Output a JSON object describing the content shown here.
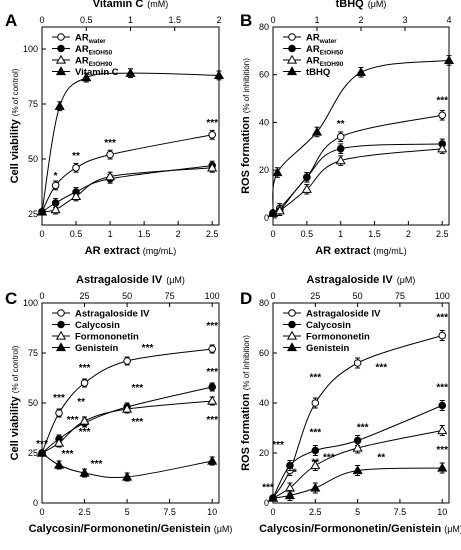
{
  "charts": [
    {
      "panel": "A",
      "top_title": "Vitamin C",
      "top_unit": "(mM)",
      "top_ticks": [
        "0",
        "0.5",
        "1",
        "1.5",
        "2"
      ],
      "top_range": [
        0,
        2
      ],
      "ylabel": "Cell viability",
      "ylabel_unit": "(% of control)",
      "xlabel": "AR extract",
      "xlabel_unit": "(mg/mL)",
      "x_ticks": [
        "0",
        "0.5",
        "1",
        "1.5",
        "2",
        "2.5"
      ],
      "x_range": [
        0,
        2.6
      ],
      "y_ticks": [
        "25",
        "50",
        "75",
        "100"
      ],
      "y_range": [
        20,
        110
      ],
      "legend": [
        {
          "name": "AR",
          "sub": "water",
          "marker": "circle-open"
        },
        {
          "name": "AR",
          "sub": "EtOH50",
          "marker": "circle-filled"
        },
        {
          "name": "AR",
          "sub": "EtOH90",
          "marker": "triangle-open"
        },
        {
          "name": "Vitamin C",
          "sub": "",
          "marker": "triangle-filled"
        }
      ]
    },
    {
      "panel": "B",
      "top_title": "tBHQ",
      "top_unit": "(μM)",
      "top_ticks": [
        "0",
        "1",
        "2",
        "3",
        "4"
      ],
      "top_range": [
        0,
        4
      ],
      "ylabel": "ROS formation",
      "ylabel_unit": "(% of inhibition)",
      "xlabel": "AR extract",
      "xlabel_unit": "(mg/mL)",
      "x_ticks": [
        "0",
        "0.5",
        "1",
        "1.5",
        "2",
        "2.5"
      ],
      "x_range": [
        0,
        2.6
      ],
      "y_ticks": [
        "0",
        "20",
        "40",
        "60",
        "80"
      ],
      "y_range": [
        -3,
        80
      ],
      "legend": [
        {
          "name": "AR",
          "sub": "water",
          "marker": "circle-open"
        },
        {
          "name": "AR",
          "sub": "EtOH50",
          "marker": "circle-filled"
        },
        {
          "name": "AR",
          "sub": "EtOH90",
          "marker": "triangle-open"
        },
        {
          "name": "tBHQ",
          "sub": "",
          "marker": "triangle-filled"
        }
      ]
    },
    {
      "panel": "C",
      "top_title": "Astragaloside IV",
      "top_unit": "(μM)",
      "top_ticks": [
        "0",
        "25",
        "50",
        "75",
        "100"
      ],
      "top_range": [
        0,
        104
      ],
      "ylabel": "Cell viability",
      "ylabel_unit": "(% of control)",
      "xlabel": "Calycosin/Formononetin/Genistein",
      "xlabel_unit": "(μM)",
      "x_ticks": [
        "0",
        "2.5",
        "5",
        "7.5",
        "10"
      ],
      "x_range": [
        0,
        10.4
      ],
      "y_ticks": [
        "0",
        "25",
        "50",
        "75",
        "100"
      ],
      "y_range": [
        0,
        100
      ],
      "legend": [
        {
          "name": "Astragaloside IV",
          "sub": "",
          "marker": "circle-open"
        },
        {
          "name": "Calycosin",
          "sub": "",
          "marker": "circle-filled"
        },
        {
          "name": "Formononetin",
          "sub": "",
          "marker": "triangle-open"
        },
        {
          "name": "Genistein",
          "sub": "",
          "marker": "triangle-filled"
        }
      ]
    },
    {
      "panel": "D",
      "top_title": "Astragaloside IV",
      "top_unit": "(μM)",
      "top_ticks": [
        "0",
        "25",
        "50",
        "75",
        "100"
      ],
      "top_range": [
        0,
        104
      ],
      "ylabel": "ROS formation",
      "ylabel_unit": "(% of inhibition)",
      "xlabel": "Calycosin/Formononetin/Genistein",
      "xlabel_unit": "(μM)",
      "x_ticks": [
        "0",
        "2.5",
        "5",
        "7.5",
        "10"
      ],
      "x_range": [
        0,
        10.4
      ],
      "y_ticks": [
        "0",
        "20",
        "40",
        "60",
        "80"
      ],
      "y_range": [
        0,
        80
      ],
      "legend": [
        {
          "name": "Astragaloside IV",
          "sub": "",
          "marker": "circle-open"
        },
        {
          "name": "Calycosin",
          "sub": "",
          "marker": "circle-filled"
        },
        {
          "name": "Formononetin",
          "sub": "",
          "marker": "triangle-open"
        },
        {
          "name": "Genistein",
          "sub": "",
          "marker": "triangle-filled"
        }
      ]
    }
  ],
  "chart_data": [
    {
      "type": "scatter",
      "panel": "A",
      "series": [
        {
          "marker": "circle-open",
          "axis": "bottom",
          "x": [
            0,
            0.2,
            0.5,
            1,
            2.5
          ],
          "y": [
            26,
            38,
            46,
            52,
            61
          ],
          "err": [
            1,
            2,
            2,
            2,
            2
          ]
        },
        {
          "marker": "circle-filled",
          "axis": "bottom",
          "x": [
            0,
            0.2,
            0.5,
            1,
            2.5
          ],
          "y": [
            26,
            30,
            35,
            41,
            47
          ],
          "err": [
            1,
            2,
            2,
            2,
            2
          ]
        },
        {
          "marker": "triangle-open",
          "axis": "bottom",
          "x": [
            0,
            0.2,
            0.5,
            1,
            2.5
          ],
          "y": [
            26,
            27,
            33,
            42,
            46
          ],
          "err": [
            1,
            2,
            2,
            2,
            2
          ]
        },
        {
          "marker": "triangle-filled",
          "axis": "top",
          "x": [
            0,
            0.2,
            0.5,
            1,
            2
          ],
          "y": [
            26,
            74,
            87,
            89,
            88
          ],
          "err": [
            1,
            2,
            2,
            2,
            2
          ]
        }
      ],
      "annotations": [
        {
          "text": "*",
          "x": 0.2,
          "y": 41
        },
        {
          "text": "**",
          "x": 0.5,
          "y": 50
        },
        {
          "text": "***",
          "x": 1,
          "y": 56
        },
        {
          "text": "***",
          "x": 2.5,
          "y": 65
        }
      ]
    },
    {
      "type": "scatter",
      "panel": "B",
      "series": [
        {
          "marker": "circle-open",
          "axis": "bottom",
          "x": [
            0,
            0.1,
            0.5,
            1,
            2.5
          ],
          "y": [
            2,
            4,
            17,
            34,
            43
          ],
          "err": [
            1,
            2,
            2,
            2,
            2
          ]
        },
        {
          "marker": "circle-filled",
          "axis": "bottom",
          "x": [
            0,
            0.1,
            0.5,
            1,
            2.5
          ],
          "y": [
            2,
            3,
            17,
            29,
            31
          ],
          "err": [
            1,
            2,
            2,
            2,
            2
          ]
        },
        {
          "marker": "triangle-open",
          "axis": "bottom",
          "x": [
            0,
            0.1,
            0.5,
            1,
            2.5
          ],
          "y": [
            2,
            3,
            12,
            24,
            29
          ],
          "err": [
            1,
            2,
            2,
            2,
            2
          ]
        },
        {
          "marker": "triangle-filled",
          "axis": "top",
          "x": [
            0,
            0.1,
            1,
            2,
            4
          ],
          "y": [
            2,
            19,
            36,
            61,
            66
          ],
          "err": [
            1,
            2,
            2,
            2,
            2
          ]
        }
      ],
      "annotations": [
        {
          "text": "**",
          "x": 1,
          "y": 38
        },
        {
          "text": "***",
          "x": 2.5,
          "y": 48
        }
      ]
    },
    {
      "type": "scatter",
      "panel": "C",
      "series": [
        {
          "marker": "circle-open",
          "axis": "top",
          "x": [
            0,
            10,
            25,
            50,
            100
          ],
          "y": [
            25,
            45,
            60,
            71,
            77
          ],
          "err": [
            1,
            2,
            2,
            2,
            2
          ]
        },
        {
          "marker": "circle-filled",
          "axis": "bottom",
          "x": [
            0,
            1,
            2.5,
            5,
            10
          ],
          "y": [
            25,
            32,
            40,
            48,
            58
          ],
          "err": [
            1,
            2,
            2,
            2,
            2
          ]
        },
        {
          "marker": "triangle-open",
          "axis": "bottom",
          "x": [
            0,
            1,
            2.5,
            5,
            10
          ],
          "y": [
            25,
            30,
            41,
            47,
            51
          ],
          "err": [
            1,
            2,
            2,
            2,
            2
          ]
        },
        {
          "marker": "triangle-filled",
          "axis": "bottom",
          "x": [
            0,
            1,
            2.5,
            5,
            10
          ],
          "y": [
            25,
            19,
            15,
            13,
            21
          ],
          "err": [
            1,
            2,
            2,
            2,
            2
          ]
        }
      ],
      "annotations": [
        {
          "text": "***",
          "x": 0,
          "y": 28
        },
        {
          "text": "***",
          "x": 1,
          "y": 51
        },
        {
          "text": "***",
          "x": 1.8,
          "y": 40
        },
        {
          "text": "**",
          "x": 2.3,
          "y": 49
        },
        {
          "text": "***",
          "x": 2.5,
          "y": 66
        },
        {
          "text": "***",
          "x": 2.5,
          "y": 34
        },
        {
          "text": "***",
          "x": 1.5,
          "y": 23
        },
        {
          "text": "***",
          "x": 3.2,
          "y": 18
        },
        {
          "text": "***",
          "x": 6.2,
          "y": 76
        },
        {
          "text": "***",
          "x": 5.6,
          "y": 56
        },
        {
          "text": "***",
          "x": 5.6,
          "y": 39
        },
        {
          "text": "***",
          "x": 10,
          "y": 87
        },
        {
          "text": "***",
          "x": 10,
          "y": 64
        },
        {
          "text": "***",
          "x": 10,
          "y": 40
        }
      ]
    },
    {
      "type": "scatter",
      "panel": "D",
      "series": [
        {
          "marker": "circle-open",
          "axis": "top",
          "x": [
            0,
            10,
            25,
            50,
            100
          ],
          "y": [
            2,
            13,
            40,
            56,
            67
          ],
          "err": [
            1,
            2,
            2,
            2,
            2
          ]
        },
        {
          "marker": "circle-filled",
          "axis": "bottom",
          "x": [
            0,
            1,
            2.5,
            5,
            10
          ],
          "y": [
            2,
            15,
            21,
            25,
            39
          ],
          "err": [
            1,
            2,
            2,
            2,
            2
          ]
        },
        {
          "marker": "triangle-open",
          "axis": "bottom",
          "x": [
            0,
            1,
            2.5,
            5,
            10
          ],
          "y": [
            2,
            6,
            15,
            22,
            29
          ],
          "err": [
            1,
            2,
            2,
            2,
            2
          ]
        },
        {
          "marker": "triangle-filled",
          "axis": "bottom",
          "x": [
            0,
            1,
            2.5,
            5,
            10
          ],
          "y": [
            2,
            3,
            6,
            13,
            14
          ],
          "err": [
            1,
            2,
            2,
            2,
            2
          ]
        }
      ],
      "annotations": [
        {
          "text": "***",
          "x": -0.3,
          "y": 5
        },
        {
          "text": "***",
          "x": 0.3,
          "y": 22
        },
        {
          "text": "*",
          "x": 1.3,
          "y": 11
        },
        {
          "text": "***",
          "x": 2.5,
          "y": 49
        },
        {
          "text": "***",
          "x": 2.5,
          "y": 27
        },
        {
          "text": "**",
          "x": 2.5,
          "y": 15
        },
        {
          "text": "***",
          "x": 3.3,
          "y": 17
        },
        {
          "text": "***",
          "x": 5.3,
          "y": 29
        },
        {
          "text": "**",
          "x": 6.4,
          "y": 17
        },
        {
          "text": "***",
          "x": 6.4,
          "y": 53
        },
        {
          "text": "***",
          "x": 10,
          "y": 73
        },
        {
          "text": "***",
          "x": 10,
          "y": 45
        },
        {
          "text": "***",
          "x": 10,
          "y": 20
        }
      ]
    }
  ]
}
